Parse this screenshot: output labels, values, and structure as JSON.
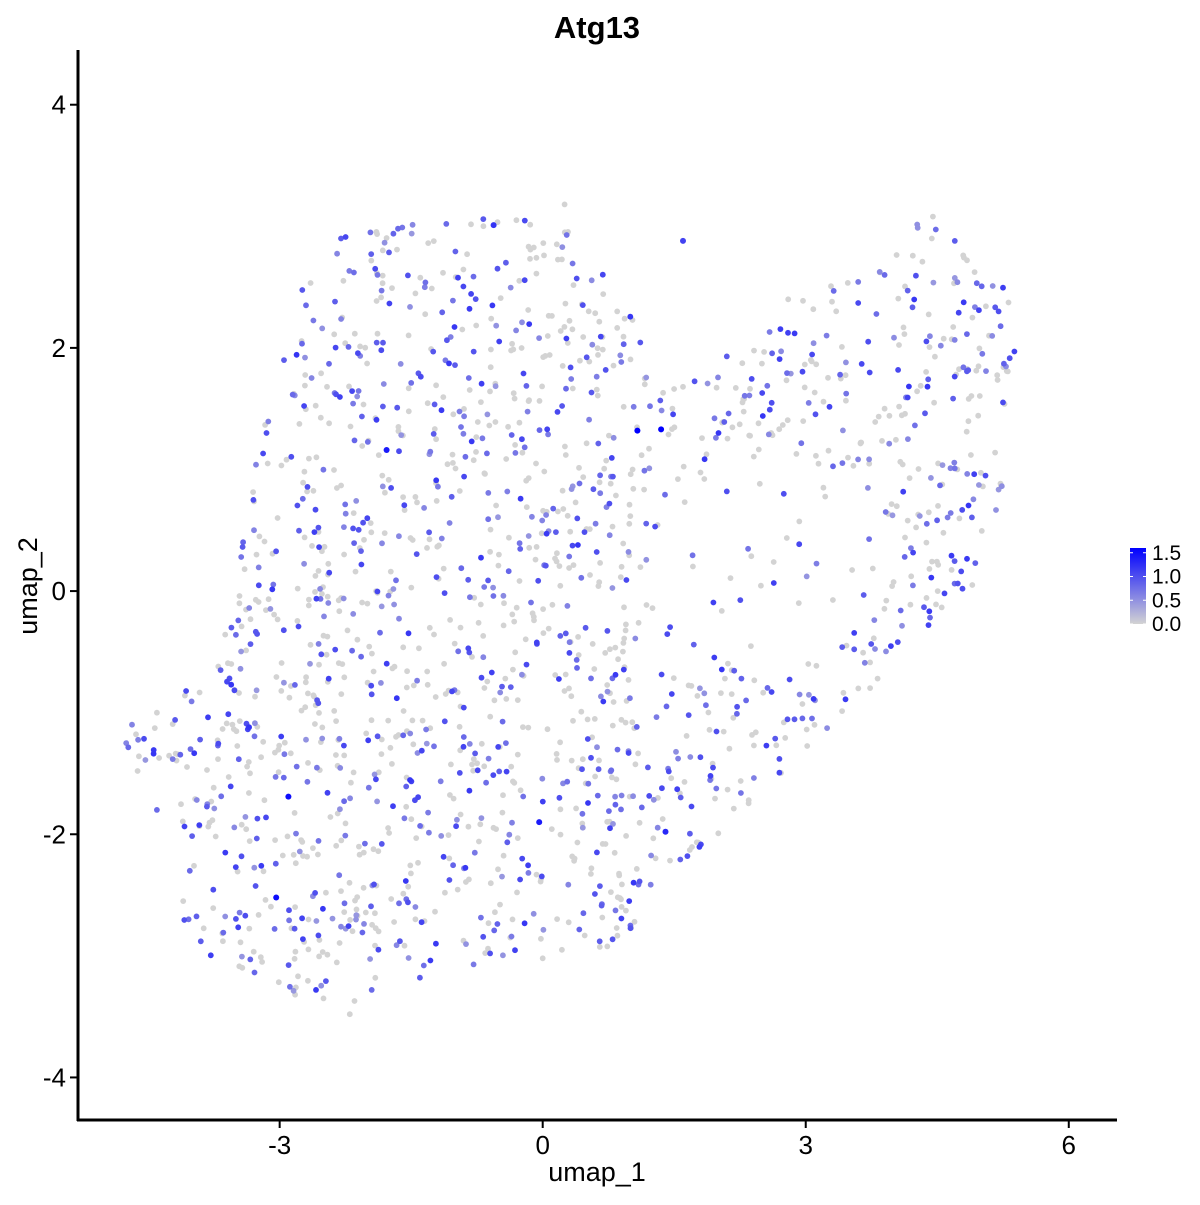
{
  "chart_data": {
    "type": "scatter",
    "title": "Atg13",
    "xlabel": "umap_1",
    "ylabel": "umap_2",
    "xlim": [
      -5.3,
      6.55
    ],
    "ylim": [
      -4.35,
      4.45
    ],
    "x_ticks": [
      -3,
      0,
      3,
      6
    ],
    "x_tick_labels": [
      "-3",
      "0",
      "3",
      "6"
    ],
    "y_ticks": [
      -4,
      -2,
      0,
      2,
      4
    ],
    "y_tick_labels": [
      "-4",
      "-2",
      "0",
      "2",
      "4"
    ],
    "grid": false,
    "legend_placement": "right",
    "colorbar": {
      "min": 0.0,
      "max": 1.6,
      "ticks": [
        0.0,
        0.5,
        1.0,
        1.5
      ],
      "tick_labels": [
        "0.0",
        "0.5",
        "1.0",
        "1.5"
      ],
      "low_color": "#d3d3d3",
      "high_color": "#0000ff"
    },
    "highlighted_points": [
      {
        "x": 1.08,
        "y": 1.32,
        "value": 1.6
      },
      {
        "x": 1.35,
        "y": 1.33,
        "value": 1.6
      },
      {
        "x": -1.78,
        "y": 1.16,
        "value": 1.4
      },
      {
        "x": -2.9,
        "y": -1.69,
        "value": 1.5
      },
      {
        "x": -3.04,
        "y": -2.52,
        "value": 1.5
      },
      {
        "x": -0.04,
        "y": -1.9,
        "value": 1.4
      },
      {
        "x": 1.4,
        "y": -1.98,
        "value": 1.3
      },
      {
        "x": -3.35,
        "y": -1.12,
        "value": 1.2
      },
      {
        "x": -0.56,
        "y": 3.01,
        "value": 1.2
      },
      {
        "x": 1.6,
        "y": 2.88,
        "value": 1.1
      }
    ],
    "sampled_points": [
      {
        "x": -4.75,
        "y": -1.25,
        "value": 0.6
      },
      {
        "x": -4.62,
        "y": -1.48,
        "value": 0.0
      },
      {
        "x": -4.4,
        "y": -1.8,
        "value": 0.8
      },
      {
        "x": -4.1,
        "y": -2.55,
        "value": 0.0
      },
      {
        "x": -3.9,
        "y": -2.88,
        "value": 0.9
      },
      {
        "x": -3.5,
        "y": -2.27,
        "value": 1.1
      },
      {
        "x": -3.2,
        "y": -3.05,
        "value": 0.0
      },
      {
        "x": -2.5,
        "y": -3.35,
        "value": 0.0
      },
      {
        "x": -2.2,
        "y": -3.48,
        "value": 0.0
      },
      {
        "x": -1.95,
        "y": -3.28,
        "value": 0.8
      },
      {
        "x": -1.4,
        "y": -3.18,
        "value": 0.9
      },
      {
        "x": -0.6,
        "y": -2.98,
        "value": 1.0
      },
      {
        "x": 0.0,
        "y": -3.02,
        "value": 0.0
      },
      {
        "x": 0.65,
        "y": -2.88,
        "value": 0.9
      },
      {
        "x": 1.0,
        "y": -2.75,
        "value": 0.8
      },
      {
        "x": 1.65,
        "y": -2.18,
        "value": 1.0
      },
      {
        "x": 2.35,
        "y": -1.72,
        "value": 0.0
      },
      {
        "x": 2.7,
        "y": -1.38,
        "value": 1.0
      },
      {
        "x": 3.1,
        "y": -1.1,
        "value": 0.0
      },
      {
        "x": 3.6,
        "y": -0.8,
        "value": 0.0
      },
      {
        "x": 4.05,
        "y": -0.42,
        "value": 1.0
      },
      {
        "x": 4.4,
        "y": -0.28,
        "value": 1.1
      },
      {
        "x": 4.9,
        "y": 0.05,
        "value": 0.0
      },
      {
        "x": 5.05,
        "y": 0.95,
        "value": 1.0
      },
      {
        "x": 5.38,
        "y": 1.97,
        "value": 1.1
      },
      {
        "x": 5.2,
        "y": 2.3,
        "value": 1.0
      },
      {
        "x": 4.7,
        "y": 2.88,
        "value": 0.9
      },
      {
        "x": 4.45,
        "y": 3.08,
        "value": 0.0
      },
      {
        "x": 3.9,
        "y": 2.6,
        "value": 0.8
      },
      {
        "x": 3.3,
        "y": 2.38,
        "value": 0.0
      },
      {
        "x": 2.8,
        "y": 2.4,
        "value": 0.0
      },
      {
        "x": 2.1,
        "y": 1.93,
        "value": 0.9
      },
      {
        "x": 1.6,
        "y": 1.68,
        "value": 0.0
      },
      {
        "x": 0.85,
        "y": 2.3,
        "value": 0.0
      },
      {
        "x": 0.25,
        "y": 3.18,
        "value": 0.0
      },
      {
        "x": -0.3,
        "y": 3.05,
        "value": 0.0
      },
      {
        "x": -1.1,
        "y": 3.02,
        "value": 0.8
      },
      {
        "x": -1.65,
        "y": 2.98,
        "value": 0.8
      },
      {
        "x": -2.3,
        "y": 2.9,
        "value": 0.9
      },
      {
        "x": -2.7,
        "y": 2.35,
        "value": 0.8
      },
      {
        "x": -2.95,
        "y": 1.9,
        "value": 0.9
      },
      {
        "x": -3.15,
        "y": 1.3,
        "value": 1.0
      },
      {
        "x": -3.3,
        "y": 0.75,
        "value": 1.0
      },
      {
        "x": -3.4,
        "y": 0.18,
        "value": 0.0
      },
      {
        "x": -3.55,
        "y": -0.3,
        "value": 0.9
      },
      {
        "x": -3.7,
        "y": -0.62,
        "value": 0.0
      },
      {
        "x": -1.9,
        "y": 0.0,
        "value": 0.0
      },
      {
        "x": -0.5,
        "y": 0.3,
        "value": 0.0
      },
      {
        "x": 0.9,
        "y": 0.2,
        "value": 0.0
      },
      {
        "x": 2.1,
        "y": 0.82,
        "value": 1.0
      },
      {
        "x": 2.75,
        "y": 0.8,
        "value": 1.0
      },
      {
        "x": 3.9,
        "y": 1.5,
        "value": 0.0
      },
      {
        "x": -0.9,
        "y": -1.2,
        "value": 0.8
      },
      {
        "x": 0.3,
        "y": -0.8,
        "value": 0.0
      },
      {
        "x": 1.2,
        "y": -1.45,
        "value": 0.9
      }
    ]
  }
}
